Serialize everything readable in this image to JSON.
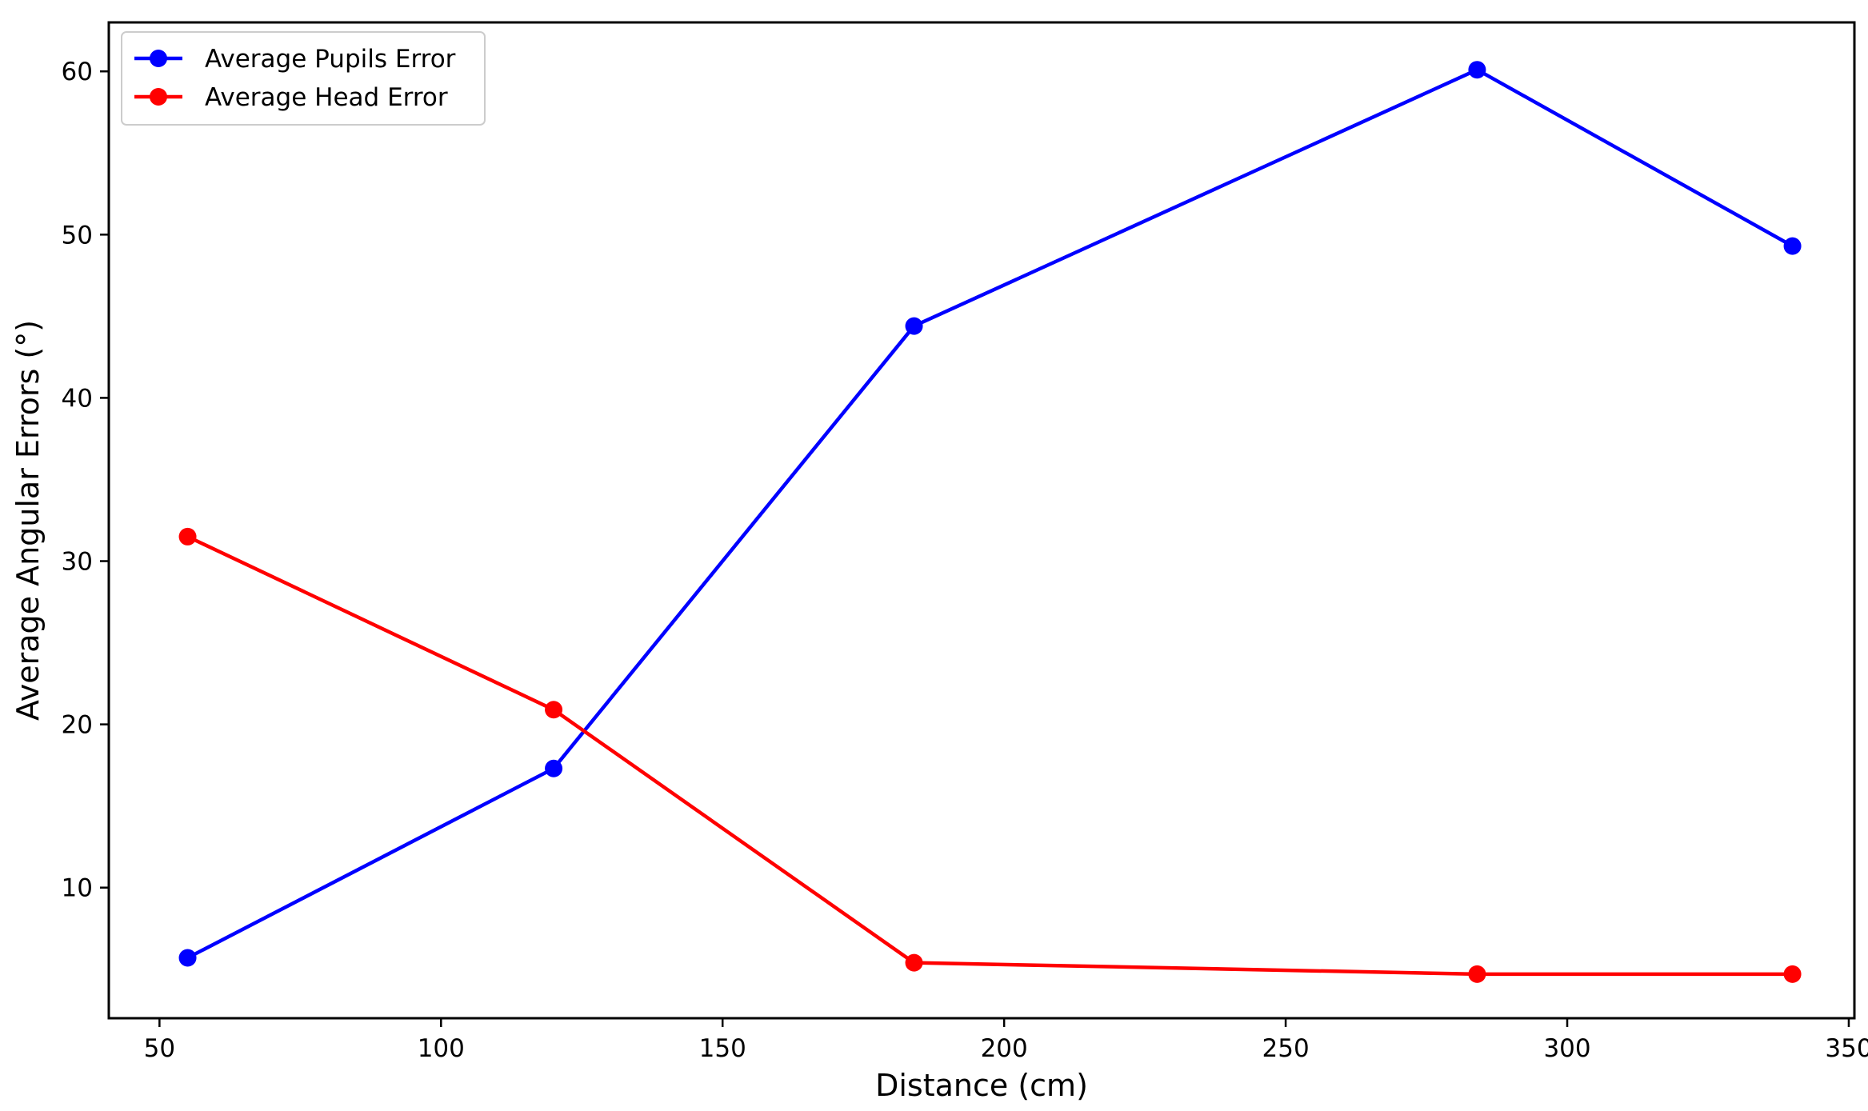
{
  "chart_data": {
    "type": "line",
    "title": "",
    "xlabel": "Distance (cm)",
    "ylabel": "Average Angular Errors (°)",
    "xlim": [
      41,
      351
    ],
    "ylim": [
      2.0,
      63.0
    ],
    "xticks": [
      50,
      100,
      150,
      200,
      250,
      300,
      350
    ],
    "yticks": [
      10,
      20,
      30,
      40,
      50,
      60
    ],
    "grid": false,
    "legend_position": "top-left",
    "x": [
      55,
      120,
      184,
      284,
      340
    ],
    "series": [
      {
        "name": "Average Pupils Error",
        "color": "#0000ff",
        "marker": "circle",
        "values": [
          5.7,
          17.3,
          44.4,
          60.1,
          49.3
        ]
      },
      {
        "name": "Average Head Error",
        "color": "#ff0000",
        "marker": "circle",
        "values": [
          31.5,
          20.9,
          5.4,
          4.7,
          4.7
        ]
      }
    ]
  }
}
